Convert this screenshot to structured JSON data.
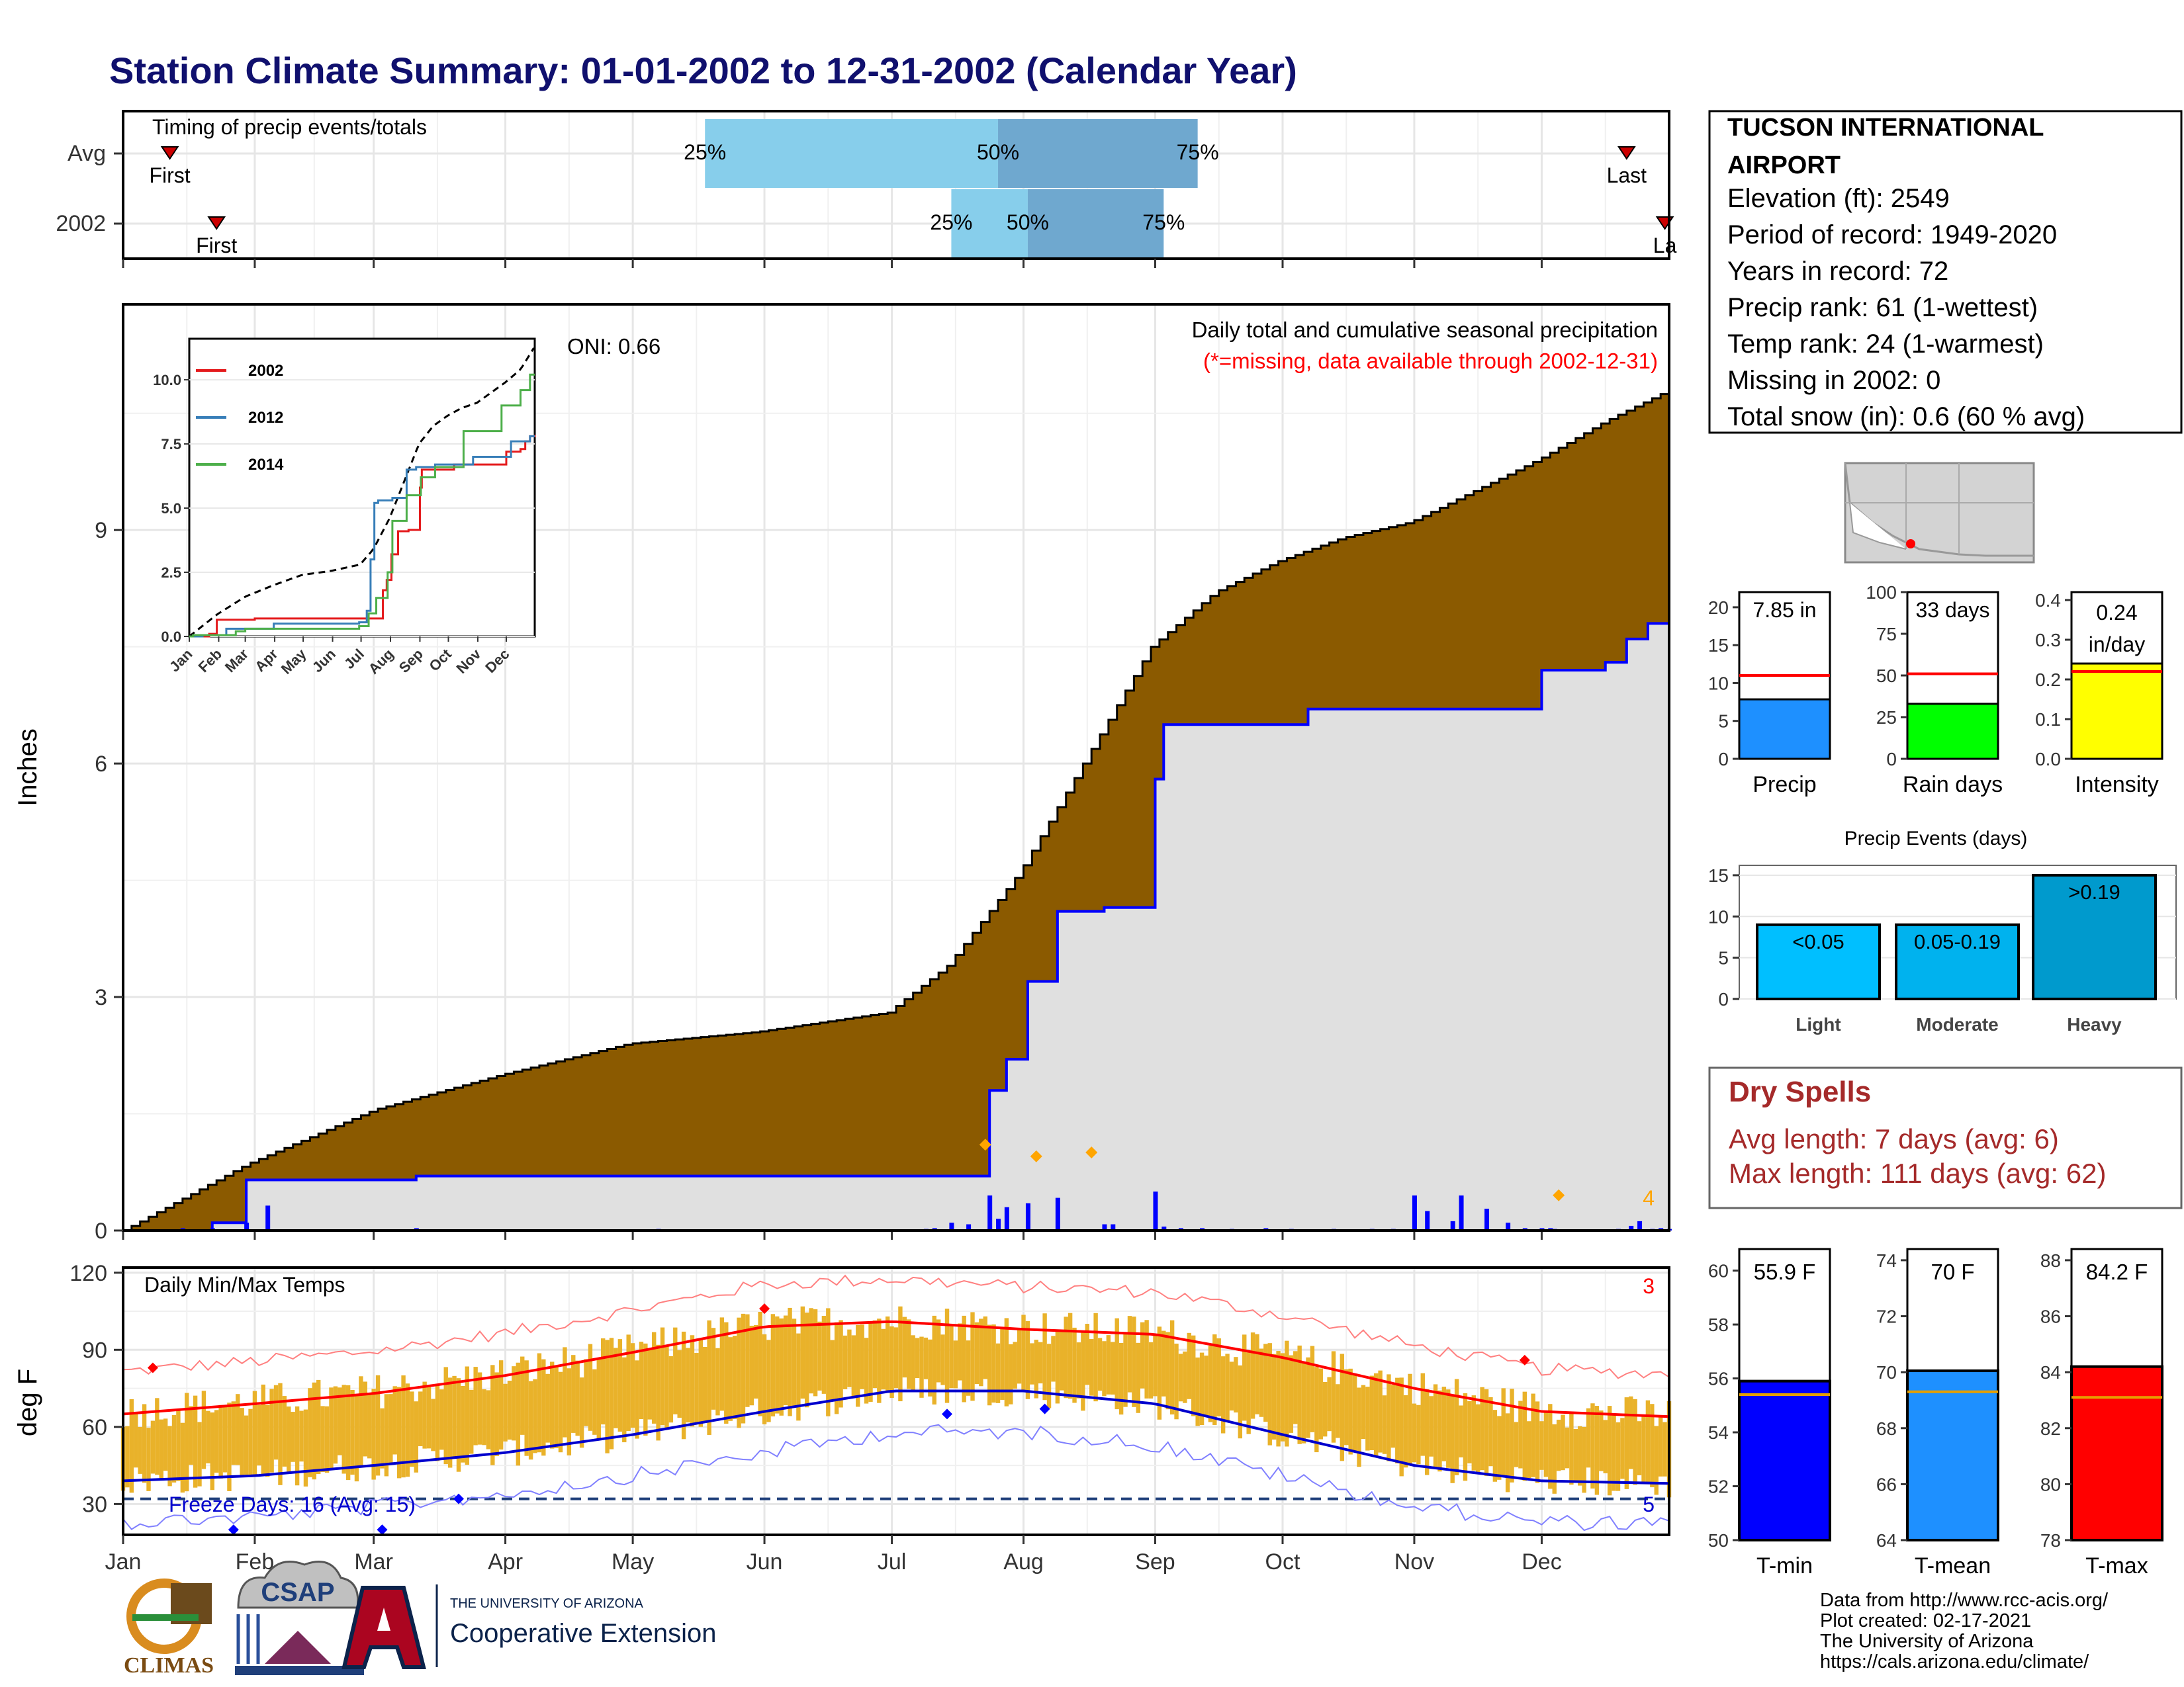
{
  "title": "Station Climate Summary: 01-01-2002 to 12-31-2002 (Calendar Year)",
  "station": {
    "name": "TUCSON INTERNATIONAL AIRPORT",
    "lines": [
      "Elevation (ft): 2549",
      "Period of record: 1949-2020",
      "Years in record: 72",
      "Precip rank: 61 (1-wettest)",
      "Temp rank: 24 (1-warmest)",
      "Missing in 2002: 0",
      "Total snow (in): 0.6 (60 % avg)"
    ]
  },
  "timing": {
    "title": "Timing of precip events/totals",
    "rows": [
      {
        "label": "Avg",
        "first": "First",
        "last": "Last",
        "p25": "25%",
        "p50": "50%",
        "p75": "75%",
        "first_doy": 12,
        "last_doy": 355,
        "p25_doy": 138,
        "p50_doy": 207,
        "p75_doy": 254
      },
      {
        "label": "2002",
        "first": "First",
        "last": "La",
        "p25": "25%",
        "p50": "50%",
        "p75": "75%",
        "first_doy": 23,
        "last_doy": 364,
        "p25_doy": 196,
        "p50_doy": 214,
        "p75_doy": 246
      }
    ]
  },
  "precip_panel": {
    "caption": "Daily total and cumulative seasonal precipitation",
    "missing_note": "(*=missing, data available through 2002-12-31)",
    "oni": "ONI: 0.66",
    "ylabel": "Inches",
    "yticks": [
      "0",
      "3",
      "6",
      "9"
    ],
    "corner_count": "4",
    "month_labels": [
      "Jan",
      "Feb",
      "Mar",
      "Apr",
      "May",
      "Jun",
      "Jul",
      "Aug",
      "Sep",
      "Oct",
      "Nov",
      "Dec"
    ]
  },
  "inset": {
    "yticks": [
      "0.0",
      "2.5",
      "5.0",
      "7.5",
      "10.0"
    ],
    "xticks": [
      "Jan",
      "Feb",
      "Mar",
      "Apr",
      "May",
      "Jun",
      "Jul",
      "Aug",
      "Sep",
      "Oct",
      "Nov",
      "Dec"
    ],
    "legend": [
      {
        "name": "2002",
        "color": "#e41a1c"
      },
      {
        "name": "2012",
        "color": "#377eb8"
      },
      {
        "name": "2014",
        "color": "#4daf4a"
      }
    ]
  },
  "temp_panel": {
    "title": "Daily Min/Max Temps",
    "ylabel": "deg F",
    "yticks": [
      "30",
      "60",
      "90",
      "120"
    ],
    "freeze": "Freeze Days: 16 (Avg: 15)",
    "corner_hot": "3",
    "corner_cold": "5",
    "month_labels": [
      "Jan",
      "Feb",
      "Mar",
      "Apr",
      "May",
      "Jun",
      "Jul",
      "Aug",
      "Sep",
      "Oct",
      "Nov",
      "Dec"
    ]
  },
  "summary_bars": [
    {
      "name": "Precip",
      "value_label": "7.85 in",
      "value": 7.85,
      "avg": 11.0,
      "ymax": 22,
      "yticks": [
        "0",
        "5",
        "10",
        "15",
        "20"
      ],
      "color": "#1e90ff"
    },
    {
      "name": "Rain days",
      "value_label": "33 days",
      "value": 33,
      "avg": 51,
      "ymax": 100,
      "yticks": [
        "0",
        "25",
        "50",
        "75",
        "100"
      ],
      "color": "#00ff00"
    },
    {
      "name": "Intensity",
      "value_label": "0.24 in/day",
      "value": 0.24,
      "avg": 0.22,
      "ymax": 0.42,
      "yticks": [
        "0.0",
        "0.1",
        "0.2",
        "0.3",
        "0.4"
      ],
      "color": "#ffff00"
    }
  ],
  "precip_events": {
    "title": "Precip Events (days)",
    "yticks": [
      "0",
      "5",
      "10",
      "15"
    ],
    "bars": [
      {
        "name": "Light",
        "label": "<0.05",
        "value": 9,
        "color": "#00bfff"
      },
      {
        "name": "Moderate",
        "label": "0.05-0.19",
        "value": 9,
        "color": "#00b2ee"
      },
      {
        "name": "Heavy",
        "label": ">0.19",
        "value": 15,
        "color": "#009acd"
      }
    ]
  },
  "dry_spells": {
    "title": "Dry Spells",
    "avg": "Avg length: 7 days (avg: 6)",
    "max": "Max length: 111 days (avg: 62)"
  },
  "temp_bars": [
    {
      "name": "T-min",
      "value_label": "55.9 F",
      "value": 55.9,
      "avg": 55.4,
      "ymin": 50,
      "ymax": 60.8,
      "yticks": [
        "50",
        "52",
        "54",
        "56",
        "58",
        "60"
      ],
      "color": "#0000ff"
    },
    {
      "name": "T-mean",
      "value_label": "70 F",
      "value": 70.05,
      "avg": 69.3,
      "ymin": 64,
      "ymax": 74.4,
      "yticks": [
        "64",
        "66",
        "68",
        "70",
        "72",
        "74"
      ],
      "color": "#1e90ff"
    },
    {
      "name": "T-max",
      "value_label": "84.2 F",
      "value": 84.2,
      "avg": 83.1,
      "ymin": 78,
      "ymax": 88.4,
      "yticks": [
        "78",
        "80",
        "82",
        "84",
        "86",
        "88"
      ],
      "color": "#ff0000"
    }
  ],
  "footer": {
    "lines": [
      "Data from http://www.rcc-acis.org/",
      "Plot created: 02-17-2021",
      "The University of Arizona",
      "https://cals.arizona.edu/climate/"
    ],
    "logo_climas": "CLIMAS",
    "logo_csap": "CSAP",
    "ua_small": "THE UNIVERSITY OF ARIZONA",
    "ua_big": "Cooperative Extension"
  },
  "chart_data": [
    {
      "type": "area",
      "title": "Daily total and cumulative seasonal precipitation",
      "ylabel": "Inches",
      "ylim": [
        0,
        11.9
      ],
      "series": [
        {
          "name": "Avg",
          "x_doy": [
            1,
            30,
            60,
            90,
            120,
            150,
            181,
            195,
            212,
            227,
            243,
            258,
            273,
            288,
            304,
            319,
            334,
            350,
            365
          ],
          "values": [
            0,
            0.85,
            1.55,
            2.0,
            2.4,
            2.55,
            2.8,
            3.4,
            4.6,
            6.0,
            7.5,
            8.2,
            8.6,
            8.9,
            9.1,
            9.5,
            9.9,
            10.4,
            10.8
          ]
        },
        {
          "name": "2002",
          "x_doy": [
            1,
            22,
            30,
            70,
            200,
            205,
            209,
            214,
            221,
            232,
            244,
            246,
            250,
            280,
            335,
            350,
            355,
            360,
            365
          ],
          "values": [
            0,
            0.1,
            0.65,
            0.7,
            0.7,
            1.8,
            2.2,
            3.2,
            4.1,
            4.15,
            5.8,
            6.5,
            6.5,
            6.7,
            7.2,
            7.3,
            7.6,
            7.8,
            7.85
          ]
        }
      ]
    },
    {
      "type": "line",
      "title": "Daily Min/Max Temps",
      "ylabel": "deg F",
      "ylim": [
        18,
        122
      ],
      "series": [
        {
          "name": "Avg max",
          "x_doy": [
            1,
            32,
            60,
            91,
            121,
            152,
            182,
            213,
            244,
            274,
            305,
            335,
            365
          ],
          "values": [
            65,
            69,
            73,
            80,
            89,
            99,
            101,
            98,
            96,
            87,
            75,
            66,
            64
          ]
        },
        {
          "name": "Avg min",
          "x_doy": [
            1,
            32,
            60,
            91,
            121,
            152,
            182,
            213,
            244,
            274,
            305,
            335,
            365
          ],
          "values": [
            39,
            41,
            45,
            50,
            57,
            66,
            74,
            74,
            69,
            57,
            45,
            39,
            38
          ]
        }
      ]
    }
  ]
}
